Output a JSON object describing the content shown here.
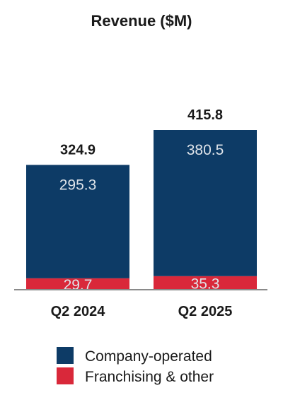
{
  "chart_data": {
    "type": "bar",
    "stacked": true,
    "title": "Revenue ($M)",
    "xlabel": "",
    "ylabel": "",
    "categories": [
      "Q2 2024",
      "Q2 2025"
    ],
    "series": [
      {
        "name": "Franchising & other",
        "values": [
          29.7,
          35.3
        ],
        "color": "#d9283a"
      },
      {
        "name": "Company-operated",
        "values": [
          295.3,
          380.5
        ],
        "color": "#0d3b66"
      }
    ],
    "totals": [
      324.9,
      415.8
    ],
    "ylim": [
      0,
      415.8
    ],
    "grid": false,
    "legend": "bottom",
    "legend_order": [
      "Company-operated",
      "Franchising & other"
    ]
  }
}
